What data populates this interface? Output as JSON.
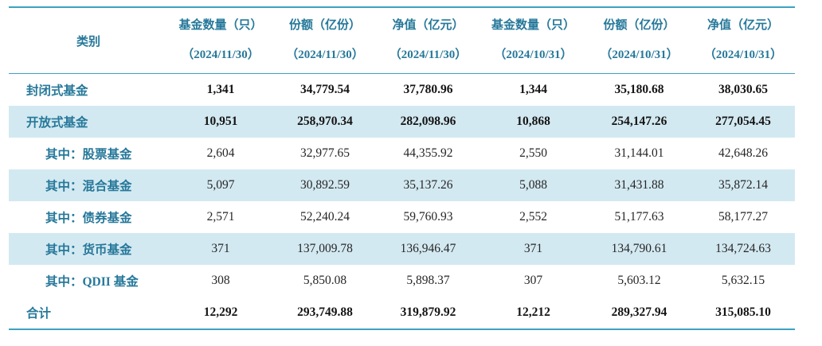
{
  "colors": {
    "accent_teal_text": "#26789a",
    "rule_line_teal": "#3da1c2",
    "band_light_blue": "#d3e9f1",
    "number_text": "#1f1f1f"
  },
  "chart_data": {
    "type": "table",
    "header": {
      "category": "类别",
      "columns": [
        {
          "label": "基金数量（只）",
          "date": "（2024/11/30）"
        },
        {
          "label": "份额（亿份）",
          "date": "（2024/11/30）"
        },
        {
          "label": "净值（亿元）",
          "date": "（2024/11/30）"
        },
        {
          "label": "基金数量（只）",
          "date": "（2024/10/31）"
        },
        {
          "label": "份额（亿份）",
          "date": "（2024/10/31）"
        },
        {
          "label": "净值（亿元）",
          "date": "（2024/10/31）"
        }
      ]
    },
    "rows": [
      {
        "category": "封闭式基金",
        "indent": false,
        "emphasis": true,
        "banded": false,
        "values": [
          "1,341",
          "34,779.54",
          "37,780.96",
          "1,344",
          "35,180.68",
          "38,030.65"
        ]
      },
      {
        "category": "开放式基金",
        "indent": false,
        "emphasis": true,
        "banded": true,
        "values": [
          "10,951",
          "258,970.34",
          "282,098.96",
          "10,868",
          "254,147.26",
          "277,054.45"
        ]
      },
      {
        "category": "其中：股票基金",
        "indent": true,
        "emphasis": false,
        "banded": false,
        "values": [
          "2,604",
          "32,977.65",
          "44,355.92",
          "2,550",
          "31,144.01",
          "42,648.26"
        ]
      },
      {
        "category": "其中：混合基金",
        "indent": true,
        "emphasis": false,
        "banded": true,
        "values": [
          "5,097",
          "30,892.59",
          "35,137.26",
          "5,088",
          "31,431.88",
          "35,872.14"
        ]
      },
      {
        "category": "其中：债券基金",
        "indent": true,
        "emphasis": false,
        "banded": false,
        "values": [
          "2,571",
          "52,240.24",
          "59,760.93",
          "2,552",
          "51,177.63",
          "58,177.27"
        ]
      },
      {
        "category": "其中：货币基金",
        "indent": true,
        "emphasis": false,
        "banded": true,
        "values": [
          "371",
          "137,009.78",
          "136,946.47",
          "371",
          "134,790.61",
          "134,724.63"
        ]
      },
      {
        "category": "其中：QDII 基金",
        "indent": true,
        "emphasis": false,
        "banded": false,
        "values": [
          "308",
          "5,850.08",
          "5,898.37",
          "307",
          "5,603.12",
          "5,632.15"
        ]
      },
      {
        "category": "合计",
        "indent": false,
        "emphasis": true,
        "banded": false,
        "values": [
          "12,292",
          "293,749.88",
          "319,879.92",
          "12,212",
          "289,327.94",
          "315,085.10"
        ]
      }
    ]
  }
}
